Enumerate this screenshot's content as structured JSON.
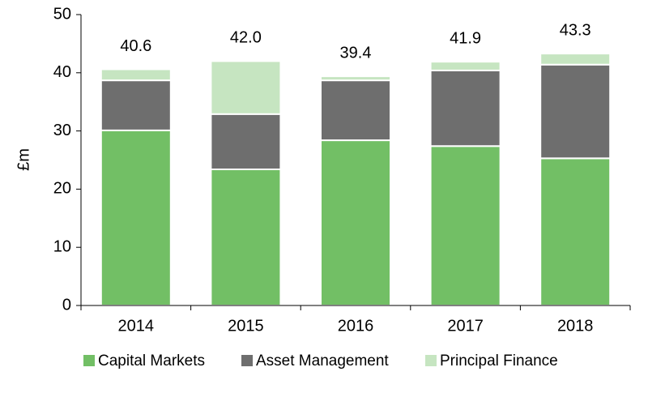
{
  "chart_data": {
    "type": "stacked_bar",
    "ylabel": "£m",
    "categories": [
      "2014",
      "2015",
      "2016",
      "2017",
      "2018"
    ],
    "series": [
      {
        "name": "Capital Markets",
        "color": "#72bf65",
        "values": [
          30.1,
          23.4,
          28.4,
          27.4,
          25.3
        ]
      },
      {
        "name": "Asset Management",
        "color": "#6e6e6e",
        "values": [
          8.6,
          9.5,
          10.3,
          13.0,
          16.1
        ]
      },
      {
        "name": "Principal Finance",
        "color": "#c6e5c1",
        "values": [
          1.9,
          9.1,
          0.7,
          1.5,
          1.9
        ]
      }
    ],
    "totals": [
      40.6,
      42.0,
      39.4,
      41.9,
      43.3
    ],
    "total_labels": [
      "40.6",
      "42.0",
      "39.4",
      "41.9",
      "43.3"
    ],
    "ylim": [
      0,
      50
    ],
    "yticks": [
      0,
      10,
      20,
      30,
      40,
      50
    ],
    "grid": false
  }
}
